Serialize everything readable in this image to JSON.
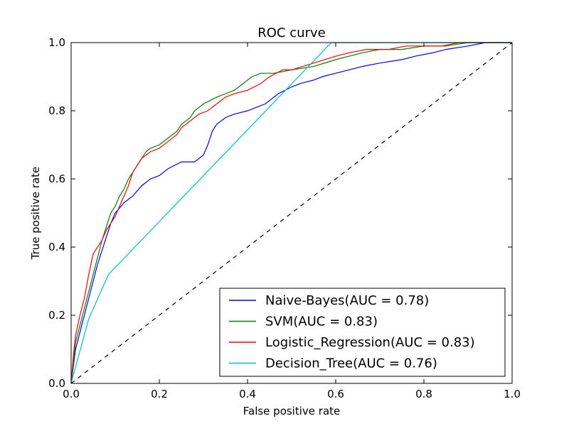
{
  "chart_data": {
    "type": "line",
    "title": "ROC curve",
    "xlabel": "False positive rate",
    "ylabel": "True positive rate",
    "xlim": [
      0.0,
      1.0
    ],
    "ylim": [
      0.0,
      1.0
    ],
    "x_ticks": [
      "0.0",
      "0.2",
      "0.4",
      "0.6",
      "0.8",
      "1.0"
    ],
    "y_ticks": [
      "0.0",
      "0.2",
      "0.4",
      "0.6",
      "0.8",
      "1.0"
    ],
    "grid": false,
    "legend_position": "lower-right",
    "reference_line": {
      "style": "dashed",
      "color": "#000000",
      "points": [
        [
          0,
          0
        ],
        [
          1,
          1
        ]
      ]
    },
    "series": [
      {
        "name": "Naive-Bayes(AUC = 0.78)",
        "color": "#0000ff",
        "points": [
          [
            0,
            0
          ],
          [
            0.005,
            0.05
          ],
          [
            0.01,
            0.1
          ],
          [
            0.02,
            0.15
          ],
          [
            0.03,
            0.2
          ],
          [
            0.04,
            0.25
          ],
          [
            0.05,
            0.3
          ],
          [
            0.06,
            0.35
          ],
          [
            0.07,
            0.39
          ],
          [
            0.08,
            0.43
          ],
          [
            0.09,
            0.47
          ],
          [
            0.1,
            0.5
          ],
          [
            0.12,
            0.53
          ],
          [
            0.14,
            0.55
          ],
          [
            0.16,
            0.58
          ],
          [
            0.18,
            0.6
          ],
          [
            0.2,
            0.61
          ],
          [
            0.22,
            0.63
          ],
          [
            0.25,
            0.65
          ],
          [
            0.28,
            0.65
          ],
          [
            0.3,
            0.67
          ],
          [
            0.31,
            0.7
          ],
          [
            0.32,
            0.74
          ],
          [
            0.33,
            0.76
          ],
          [
            0.35,
            0.78
          ],
          [
            0.37,
            0.79
          ],
          [
            0.4,
            0.8
          ],
          [
            0.42,
            0.81
          ],
          [
            0.44,
            0.82
          ],
          [
            0.45,
            0.83
          ],
          [
            0.47,
            0.85
          ],
          [
            0.5,
            0.87
          ],
          [
            0.52,
            0.88
          ],
          [
            0.55,
            0.89
          ],
          [
            0.57,
            0.9
          ],
          [
            0.6,
            0.91
          ],
          [
            0.63,
            0.92
          ],
          [
            0.66,
            0.93
          ],
          [
            0.7,
            0.94
          ],
          [
            0.75,
            0.95
          ],
          [
            0.78,
            0.96
          ],
          [
            0.82,
            0.97
          ],
          [
            0.85,
            0.98
          ],
          [
            0.9,
            0.99
          ],
          [
            0.94,
            1.0
          ],
          [
            1.0,
            1.0
          ]
        ]
      },
      {
        "name": "SVM(AUC = 0.83)",
        "color": "#008000",
        "points": [
          [
            0,
            0
          ],
          [
            0.005,
            0.06
          ],
          [
            0.01,
            0.12
          ],
          [
            0.02,
            0.17
          ],
          [
            0.03,
            0.22
          ],
          [
            0.04,
            0.27
          ],
          [
            0.05,
            0.32
          ],
          [
            0.06,
            0.37
          ],
          [
            0.07,
            0.42
          ],
          [
            0.08,
            0.46
          ],
          [
            0.09,
            0.5
          ],
          [
            0.1,
            0.52
          ],
          [
            0.11,
            0.55
          ],
          [
            0.12,
            0.57
          ],
          [
            0.13,
            0.6
          ],
          [
            0.14,
            0.62
          ],
          [
            0.15,
            0.64
          ],
          [
            0.16,
            0.66
          ],
          [
            0.17,
            0.68
          ],
          [
            0.18,
            0.69
          ],
          [
            0.2,
            0.7
          ],
          [
            0.22,
            0.72
          ],
          [
            0.24,
            0.74
          ],
          [
            0.25,
            0.76
          ],
          [
            0.27,
            0.78
          ],
          [
            0.28,
            0.8
          ],
          [
            0.3,
            0.82
          ],
          [
            0.33,
            0.84
          ],
          [
            0.35,
            0.85
          ],
          [
            0.37,
            0.86
          ],
          [
            0.39,
            0.88
          ],
          [
            0.41,
            0.9
          ],
          [
            0.43,
            0.91
          ],
          [
            0.46,
            0.91
          ],
          [
            0.5,
            0.92
          ],
          [
            0.55,
            0.93
          ],
          [
            0.6,
            0.95
          ],
          [
            0.63,
            0.96
          ],
          [
            0.66,
            0.97
          ],
          [
            0.7,
            0.98
          ],
          [
            0.75,
            0.98
          ],
          [
            0.8,
            0.99
          ],
          [
            0.85,
            0.99
          ],
          [
            0.9,
            1.0
          ],
          [
            1.0,
            1.0
          ]
        ]
      },
      {
        "name": "Logistic_Regression(AUC = 0.83)",
        "color": "#ff0000",
        "points": [
          [
            0,
            0
          ],
          [
            0.005,
            0.08
          ],
          [
            0.01,
            0.14
          ],
          [
            0.02,
            0.2
          ],
          [
            0.03,
            0.25
          ],
          [
            0.04,
            0.32
          ],
          [
            0.05,
            0.38
          ],
          [
            0.06,
            0.4
          ],
          [
            0.07,
            0.42
          ],
          [
            0.08,
            0.45
          ],
          [
            0.09,
            0.47
          ],
          [
            0.1,
            0.49
          ],
          [
            0.11,
            0.52
          ],
          [
            0.12,
            0.55
          ],
          [
            0.13,
            0.58
          ],
          [
            0.14,
            0.62
          ],
          [
            0.15,
            0.64
          ],
          [
            0.16,
            0.66
          ],
          [
            0.18,
            0.68
          ],
          [
            0.2,
            0.69
          ],
          [
            0.22,
            0.71
          ],
          [
            0.24,
            0.73
          ],
          [
            0.25,
            0.75
          ],
          [
            0.27,
            0.77
          ],
          [
            0.29,
            0.79
          ],
          [
            0.31,
            0.8
          ],
          [
            0.33,
            0.82
          ],
          [
            0.35,
            0.84
          ],
          [
            0.37,
            0.85
          ],
          [
            0.4,
            0.86
          ],
          [
            0.43,
            0.88
          ],
          [
            0.45,
            0.9
          ],
          [
            0.48,
            0.92
          ],
          [
            0.5,
            0.92
          ],
          [
            0.55,
            0.94
          ],
          [
            0.6,
            0.96
          ],
          [
            0.63,
            0.97
          ],
          [
            0.67,
            0.98
          ],
          [
            0.72,
            0.98
          ],
          [
            0.76,
            0.99
          ],
          [
            0.8,
            0.99
          ],
          [
            0.84,
            0.99
          ],
          [
            0.88,
            1.0
          ],
          [
            1.0,
            1.0
          ]
        ]
      },
      {
        "name": "Decision_Tree(AUC = 0.76)",
        "color": "#00bfbf",
        "points": [
          [
            0,
            0
          ],
          [
            0.04,
            0.19
          ],
          [
            0.085,
            0.32
          ],
          [
            0.59,
            1.0
          ],
          [
            1.0,
            1.0
          ]
        ]
      }
    ]
  }
}
